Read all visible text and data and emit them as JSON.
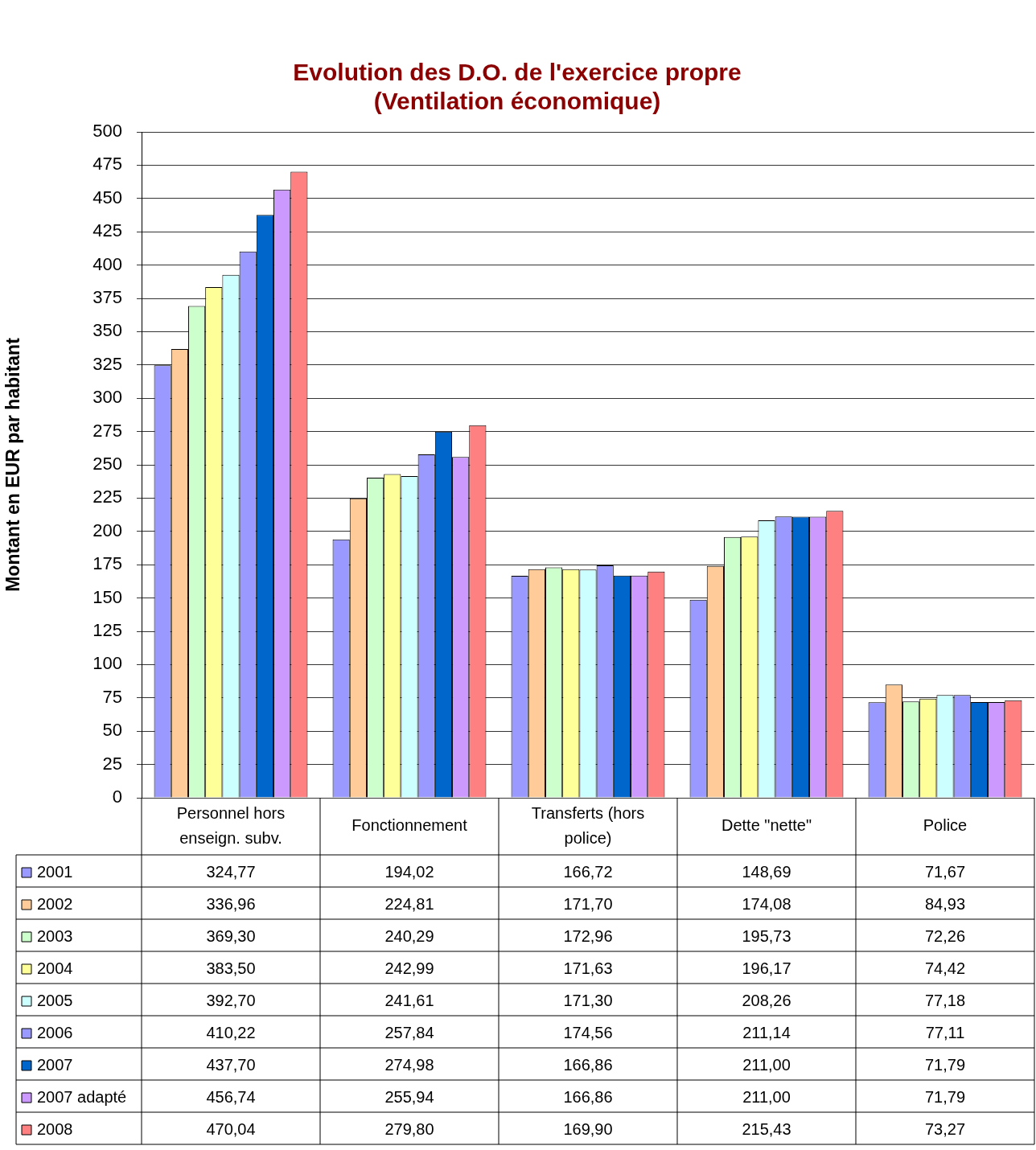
{
  "chart_data": {
    "type": "bar",
    "title": "Evolution des D.O. de l'exercice propre\n(Ventilation économique)",
    "ylabel": "Montant en EUR par habitant",
    "categories": [
      "Personnel hors enseign. subv.",
      "Fonctionnement",
      "Transferts (hors police)",
      "Dette \"nette\"",
      "Police"
    ],
    "ylim": [
      0,
      500
    ],
    "yticks": [
      0,
      25,
      50,
      75,
      100,
      125,
      150,
      175,
      200,
      225,
      250,
      275,
      300,
      325,
      350,
      375,
      400,
      425,
      450,
      475,
      500
    ],
    "grid": "y",
    "legend": "bottom left",
    "series": [
      {
        "name": "2001",
        "color": "#9999ff",
        "values": [
          324.77,
          194.02,
          166.72,
          148.69,
          71.67
        ],
        "value_labels": [
          "324,77",
          "194,02",
          "166,72",
          "148,69",
          "71,67"
        ]
      },
      {
        "name": "2002",
        "color": "#ffcc99",
        "values": [
          336.96,
          224.81,
          171.7,
          174.08,
          84.93
        ],
        "value_labels": [
          "336,96",
          "224,81",
          "171,70",
          "174,08",
          "84,93"
        ]
      },
      {
        "name": "2003",
        "color": "#ccffcc",
        "values": [
          369.3,
          240.29,
          172.96,
          195.73,
          72.26
        ],
        "value_labels": [
          "369,30",
          "240,29",
          "172,96",
          "195,73",
          "72,26"
        ]
      },
      {
        "name": "2004",
        "color": "#ffff99",
        "values": [
          383.5,
          242.99,
          171.63,
          196.17,
          74.42
        ],
        "value_labels": [
          "383,50",
          "242,99",
          "171,63",
          "196,17",
          "74,42"
        ]
      },
      {
        "name": "2005",
        "color": "#ccffff",
        "values": [
          392.7,
          241.61,
          171.3,
          208.26,
          77.18
        ],
        "value_labels": [
          "392,70",
          "241,61",
          "171,30",
          "208,26",
          "77,18"
        ]
      },
      {
        "name": "2006",
        "color": "#9999ff",
        "values": [
          410.22,
          257.84,
          174.56,
          211.14,
          77.11
        ],
        "value_labels": [
          "410,22",
          "257,84",
          "174,56",
          "211,14",
          "77,11"
        ]
      },
      {
        "name": "2007",
        "color": "#0066cc",
        "values": [
          437.7,
          274.98,
          166.86,
          211.0,
          71.79
        ],
        "value_labels": [
          "437,70",
          "274,98",
          "166,86",
          "211,00",
          "71,79"
        ]
      },
      {
        "name": "2007 adapté",
        "color": "#cc99ff",
        "values": [
          456.74,
          255.94,
          166.86,
          211.0,
          71.79
        ],
        "value_labels": [
          "456,74",
          "255,94",
          "166,86",
          "211,00",
          "71,79"
        ]
      },
      {
        "name": "2008",
        "color": "#ff8080",
        "values": [
          470.04,
          279.8,
          169.9,
          215.43,
          73.27
        ],
        "value_labels": [
          "470,04",
          "279,80",
          "169,90",
          "215,43",
          "73,27"
        ]
      }
    ]
  }
}
